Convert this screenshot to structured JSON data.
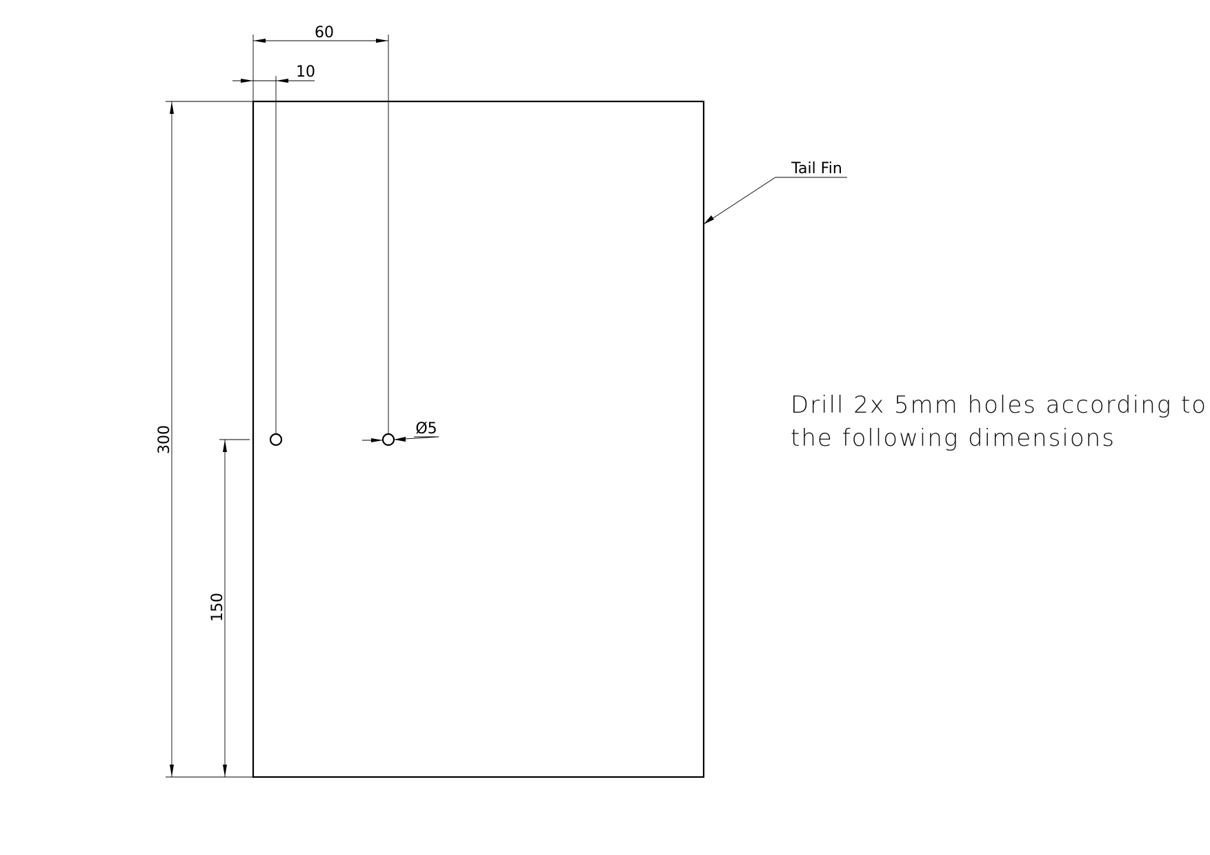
{
  "part": {
    "label": "Tail Fin"
  },
  "dimensions": {
    "hole_spacing_top": "60",
    "hole_offset_left": "10",
    "overall_height": "300",
    "hole_height": "150",
    "hole_diameter": "Ø5"
  },
  "note": {
    "line1": "Drill 2x 5mm holes according to",
    "line2": "the following dimensions"
  }
}
